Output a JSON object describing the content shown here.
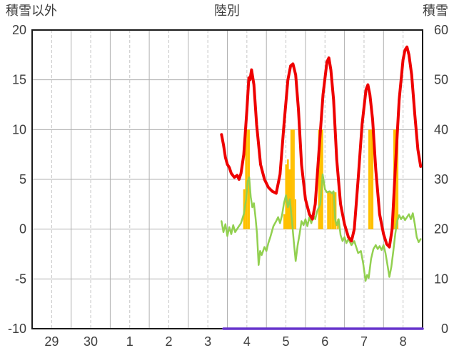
{
  "chart_data": {
    "type": "line",
    "title": "陸別",
    "left_axis": {
      "title": "積雪以外",
      "min": -10,
      "max": 20,
      "ticks": [
        20,
        15,
        10,
        5,
        0,
        -5,
        -10
      ]
    },
    "right_axis": {
      "title": "積雪",
      "min": 0,
      "max": 60,
      "ticks": [
        60,
        50,
        40,
        30,
        20,
        10,
        0
      ]
    },
    "x_axis": {
      "labels": [
        "29",
        "30",
        "1",
        "2",
        "3",
        "4",
        "5",
        "6",
        "7",
        "8"
      ],
      "days_shown": 10
    },
    "grid": {
      "solid_color": "#b0b0b0",
      "dashed_color": "#c6c6c6",
      "frame_color": "#1a1a1a",
      "text_color": "#3d3d3d"
    },
    "series": [
      {
        "name": "orange-bars",
        "type": "bar",
        "color": "#ffc000",
        "baseline": 0,
        "bars": [
          [
            5.43,
            4,
            0.05
          ],
          [
            5.485,
            10,
            0.06
          ],
          [
            5.545,
            10,
            0.06
          ],
          [
            6.46,
            1.5,
            0.05
          ],
          [
            6.505,
            6.5,
            0.05
          ],
          [
            6.55,
            7,
            0.05
          ],
          [
            6.595,
            6,
            0.05
          ],
          [
            6.645,
            10,
            0.06
          ],
          [
            6.7,
            10,
            0.05
          ],
          [
            6.745,
            3,
            0.04
          ],
          [
            7.36,
            10,
            0.07
          ],
          [
            7.425,
            10,
            0.06
          ],
          [
            7.585,
            3.7,
            0.06
          ],
          [
            7.645,
            3.7,
            0.06
          ],
          [
            7.705,
            3.7,
            0.06
          ],
          [
            7.765,
            3.7,
            0.06
          ],
          [
            7.83,
            1,
            0.04
          ],
          [
            8.645,
            10,
            0.07
          ],
          [
            8.71,
            10,
            0.06
          ],
          [
            9.285,
            10,
            0.07
          ],
          [
            9.35,
            10,
            0.06
          ]
        ]
      },
      {
        "name": "green-line",
        "type": "line",
        "color": "#92d050",
        "width": 2.5,
        "points": [
          [
            4.85,
            0.8
          ],
          [
            4.9,
            -0.3
          ],
          [
            4.95,
            0.5
          ],
          [
            5.0,
            -0.7
          ],
          [
            5.05,
            0.2
          ],
          [
            5.1,
            -0.5
          ],
          [
            5.15,
            0.4
          ],
          [
            5.2,
            -0.3
          ],
          [
            5.28,
            0.2
          ],
          [
            5.35,
            0.6
          ],
          [
            5.42,
            1.5
          ],
          [
            5.48,
            3.0
          ],
          [
            5.52,
            4.8
          ],
          [
            5.56,
            5.2
          ],
          [
            5.6,
            3.2
          ],
          [
            5.64,
            2.2
          ],
          [
            5.68,
            2.6
          ],
          [
            5.72,
            1.2
          ],
          [
            5.76,
            -0.5
          ],
          [
            5.8,
            -3.6
          ],
          [
            5.84,
            -2.2
          ],
          [
            5.88,
            -2.6
          ],
          [
            5.95,
            -1.8
          ],
          [
            6.0,
            -2.2
          ],
          [
            6.05,
            -1.4
          ],
          [
            6.1,
            -0.8
          ],
          [
            6.18,
            0.3
          ],
          [
            6.25,
            0.8
          ],
          [
            6.3,
            1.2
          ],
          [
            6.35,
            0.6
          ],
          [
            6.4,
            1.4
          ],
          [
            6.45,
            2.6
          ],
          [
            6.5,
            3.4
          ],
          [
            6.55,
            2.2
          ],
          [
            6.6,
            3.0
          ],
          [
            6.65,
            1.0
          ],
          [
            6.7,
            -1.2
          ],
          [
            6.75,
            -3.2
          ],
          [
            6.8,
            -1.6
          ],
          [
            6.85,
            -0.5
          ],
          [
            6.9,
            0.8
          ],
          [
            6.95,
            0.4
          ],
          [
            7.0,
            1.0
          ],
          [
            7.05,
            0.3
          ],
          [
            7.1,
            1.2
          ],
          [
            7.15,
            0.6
          ],
          [
            7.2,
            1.4
          ],
          [
            7.25,
            1.0
          ],
          [
            7.3,
            1.8
          ],
          [
            7.38,
            2.5
          ],
          [
            7.44,
            5.5
          ],
          [
            7.5,
            4.0
          ],
          [
            7.55,
            3.7
          ],
          [
            7.62,
            3.8
          ],
          [
            7.68,
            3.6
          ],
          [
            7.72,
            3.8
          ],
          [
            7.76,
            1.0
          ],
          [
            7.8,
            0.4
          ],
          [
            7.85,
            1.0
          ],
          [
            7.9,
            -0.6
          ],
          [
            7.95,
            -1.2
          ],
          [
            8.0,
            -0.8
          ],
          [
            8.05,
            -1.4
          ],
          [
            8.1,
            -1.0
          ],
          [
            8.18,
            -1.6
          ],
          [
            8.25,
            -1.2
          ],
          [
            8.3,
            -1.8
          ],
          [
            8.35,
            -2.4
          ],
          [
            8.42,
            -2.2
          ],
          [
            8.48,
            -3.5
          ],
          [
            8.54,
            -5.2
          ],
          [
            8.58,
            -4.6
          ],
          [
            8.62,
            -4.9
          ],
          [
            8.68,
            -3.0
          ],
          [
            8.74,
            -2.0
          ],
          [
            8.8,
            -1.6
          ],
          [
            8.85,
            -2.0
          ],
          [
            8.9,
            -1.7
          ],
          [
            8.95,
            -2.1
          ],
          [
            9.0,
            -1.6
          ],
          [
            9.05,
            -2.4
          ],
          [
            9.1,
            -3.6
          ],
          [
            9.15,
            -4.8
          ],
          [
            9.2,
            -3.8
          ],
          [
            9.25,
            -2.2
          ],
          [
            9.3,
            -0.5
          ],
          [
            9.35,
            0.8
          ],
          [
            9.4,
            1.4
          ],
          [
            9.45,
            1.0
          ],
          [
            9.5,
            1.3
          ],
          [
            9.55,
            0.9
          ],
          [
            9.6,
            1.2
          ],
          [
            9.65,
            1.5
          ],
          [
            9.7,
            1.0
          ],
          [
            9.75,
            1.6
          ],
          [
            9.8,
            0.5
          ],
          [
            9.85,
            -0.8
          ],
          [
            9.9,
            -1.3
          ],
          [
            9.95,
            -1.0
          ]
        ]
      },
      {
        "name": "red-line",
        "type": "line",
        "color": "#ee0000",
        "width": 4,
        "points": [
          [
            4.85,
            9.5
          ],
          [
            4.9,
            8.5
          ],
          [
            4.95,
            7.2
          ],
          [
            5.0,
            6.5
          ],
          [
            5.05,
            6.2
          ],
          [
            5.1,
            5.6
          ],
          [
            5.18,
            5.2
          ],
          [
            5.25,
            5.4
          ],
          [
            5.3,
            5.0
          ],
          [
            5.35,
            5.6
          ],
          [
            5.42,
            7.5
          ],
          [
            5.5,
            12.0
          ],
          [
            5.55,
            15.2
          ],
          [
            5.58,
            15.0
          ],
          [
            5.62,
            16.0
          ],
          [
            5.68,
            14.5
          ],
          [
            5.75,
            10.5
          ],
          [
            5.85,
            6.5
          ],
          [
            5.95,
            5.0
          ],
          [
            6.05,
            4.2
          ],
          [
            6.15,
            3.8
          ],
          [
            6.25,
            3.6
          ],
          [
            6.35,
            5.5
          ],
          [
            6.45,
            10.5
          ],
          [
            6.55,
            15.0
          ],
          [
            6.62,
            16.4
          ],
          [
            6.68,
            16.6
          ],
          [
            6.75,
            15.5
          ],
          [
            6.82,
            12.0
          ],
          [
            6.9,
            6.5
          ],
          [
            7.0,
            3.0
          ],
          [
            7.1,
            1.5
          ],
          [
            7.18,
            1.0
          ],
          [
            7.25,
            2.5
          ],
          [
            7.35,
            8.0
          ],
          [
            7.45,
            13.5
          ],
          [
            7.55,
            16.8
          ],
          [
            7.6,
            17.2
          ],
          [
            7.65,
            16.0
          ],
          [
            7.72,
            13.0
          ],
          [
            7.8,
            7.0
          ],
          [
            7.9,
            2.5
          ],
          [
            8.0,
            0.5
          ],
          [
            8.1,
            -0.8
          ],
          [
            8.18,
            -1.2
          ],
          [
            8.25,
            0.0
          ],
          [
            8.35,
            5.0
          ],
          [
            8.45,
            10.5
          ],
          [
            8.55,
            14.0
          ],
          [
            8.6,
            14.5
          ],
          [
            8.65,
            13.5
          ],
          [
            8.72,
            11.0
          ],
          [
            8.8,
            6.0
          ],
          [
            8.9,
            1.5
          ],
          [
            9.0,
            -0.5
          ],
          [
            9.08,
            -1.5
          ],
          [
            9.15,
            -1.8
          ],
          [
            9.22,
            0.0
          ],
          [
            9.3,
            6.0
          ],
          [
            9.4,
            13.0
          ],
          [
            9.5,
            17.0
          ],
          [
            9.55,
            18.0
          ],
          [
            9.6,
            18.3
          ],
          [
            9.65,
            17.5
          ],
          [
            9.72,
            15.5
          ],
          [
            9.8,
            11.5
          ],
          [
            9.88,
            8.0
          ],
          [
            9.95,
            6.3
          ]
        ]
      },
      {
        "name": "purple-line",
        "type": "line",
        "color": "#6633cc",
        "width": 3.5,
        "points": [
          [
            4.9,
            -10
          ],
          [
            10.0,
            -10
          ]
        ]
      }
    ]
  }
}
